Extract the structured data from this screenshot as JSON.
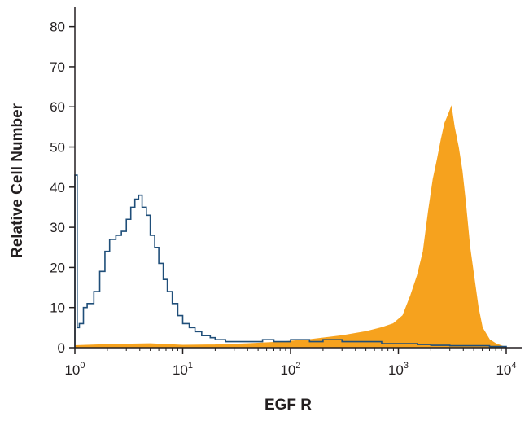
{
  "chart_data": {
    "type": "area",
    "title": "",
    "xlabel": "EGF R",
    "ylabel": "Relative Cell Number",
    "x_scale": "log",
    "xlim": [
      1,
      10000
    ],
    "ylim": [
      0,
      85
    ],
    "grid": false,
    "x_ticks": [
      {
        "base": "10",
        "exp": "0",
        "value": 1
      },
      {
        "base": "10",
        "exp": "1",
        "value": 10
      },
      {
        "base": "10",
        "exp": "2",
        "value": 100
      },
      {
        "base": "10",
        "exp": "3",
        "value": 1000
      },
      {
        "base": "10",
        "exp": "4",
        "value": 10000
      }
    ],
    "y_ticks": [
      "0",
      "10",
      "20",
      "30",
      "40",
      "50",
      "60",
      "70",
      "80"
    ],
    "series": [
      {
        "style": "outline",
        "color": "#1f4e79",
        "x": [
          1.0,
          1.05,
          1.1,
          1.2,
          1.3,
          1.5,
          1.7,
          1.9,
          2.1,
          2.4,
          2.7,
          3.0,
          3.3,
          3.6,
          3.9,
          4.2,
          4.6,
          5.0,
          5.5,
          6.0,
          6.6,
          7.2,
          8.0,
          9.0,
          10.0,
          11.5,
          13,
          15,
          18,
          20,
          25,
          30,
          40,
          55,
          70,
          100,
          150,
          200,
          300,
          400,
          500,
          700,
          1000,
          1500,
          2000,
          3000,
          5000,
          7000,
          10000
        ],
        "values": [
          43,
          5,
          6,
          10,
          11,
          14,
          19,
          24,
          27,
          28,
          29,
          32,
          35,
          37,
          38,
          35,
          33,
          28,
          25,
          21,
          17,
          14,
          11,
          8,
          6,
          5,
          4,
          3,
          2.5,
          2,
          1.5,
          1.5,
          1.5,
          2,
          1.5,
          2,
          1.5,
          2,
          1.5,
          1.5,
          1.5,
          1,
          1,
          0.8,
          0.6,
          0.5,
          0.5,
          0.3,
          0
        ]
      },
      {
        "style": "filled",
        "color": "#f6a21e",
        "x": [
          1.0,
          2.0,
          5.0,
          10.0,
          20,
          40,
          80,
          150,
          300,
          500,
          700,
          900,
          1100,
          1300,
          1500,
          1700,
          1900,
          2100,
          2300,
          2500,
          2700,
          2900,
          3100,
          3300,
          3600,
          3900,
          4200,
          4600,
          5000,
          5500,
          6000,
          7000,
          8000,
          10000
        ],
        "values": [
          0.5,
          0.8,
          1.0,
          0.6,
          0.7,
          1.0,
          1.4,
          2.0,
          3.0,
          4.0,
          5.0,
          6.0,
          8.0,
          13.0,
          18.0,
          24.0,
          34.0,
          42.0,
          47.0,
          52.0,
          56.0,
          58.0,
          60.0,
          55.0,
          50.0,
          44.0,
          36.0,
          25.0,
          18.0,
          10.0,
          5.0,
          2.0,
          1.0,
          0
        ]
      }
    ]
  }
}
